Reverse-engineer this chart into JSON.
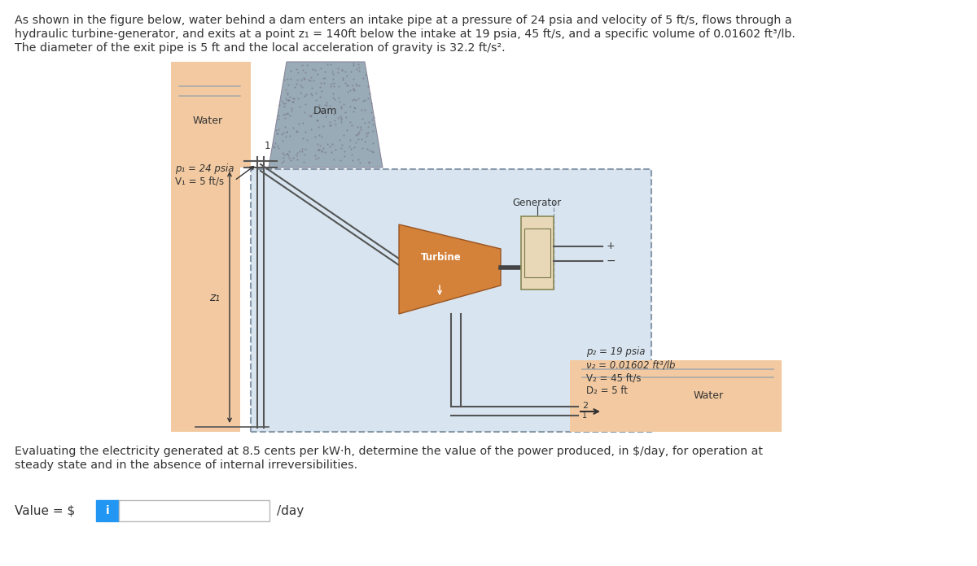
{
  "title_text_line1": "As shown in the figure below, water behind a dam enters an intake pipe at a pressure of 24 psia and velocity of 5 ft/s, flows through a",
  "title_text_line2": "hydraulic turbine-generator, and exits at a point z₁ = 140ft below the intake at 19 psia, 45 ft/s, and a specific volume of 0.01602 ft³/lb.",
  "title_text_line3": "The diameter of the exit pipe is 5 ft and the local acceleration of gravity is 32.2 ft/s².",
  "bottom_text_line1": "Evaluating the electricity generated at 8.5 cents per kW·h, determine the value of the power produced, in $/day, for operation at",
  "bottom_text_line2": "steady state and in the absence of internal irreversibilities.",
  "value_label": "Value = $ ",
  "per_day": "/day",
  "water_color": "#f2c9a0",
  "dam_color": "#9aabb8",
  "system_bg": "#d8e5f0",
  "turbine_color_top": "#d4813a",
  "turbine_color": "#d4813a",
  "generator_color": "#e8d8b8",
  "pipe_color": "#555555",
  "p1_label_line1": "p₁ = 24 psia",
  "p1_label_line2": "V₁ = 5 ft/s",
  "p2_label_line1": "p₂ = 19 psia",
  "p2_label_line2": "ν₂ = 0.01602 ft³/lb",
  "p2_label_line3": "V₂ = 45 ft/s",
  "p2_label_line4": "D₂ = 5 ft",
  "water_label": "Water",
  "dam_label": "Dam",
  "turbine_label": "Turbine",
  "generator_label": "Generator",
  "z1_label": "z₁",
  "input_box_color": "#2196f3",
  "bg_color": "#ffffff",
  "text_color": "#333333",
  "border_color": "#aaaaaa"
}
